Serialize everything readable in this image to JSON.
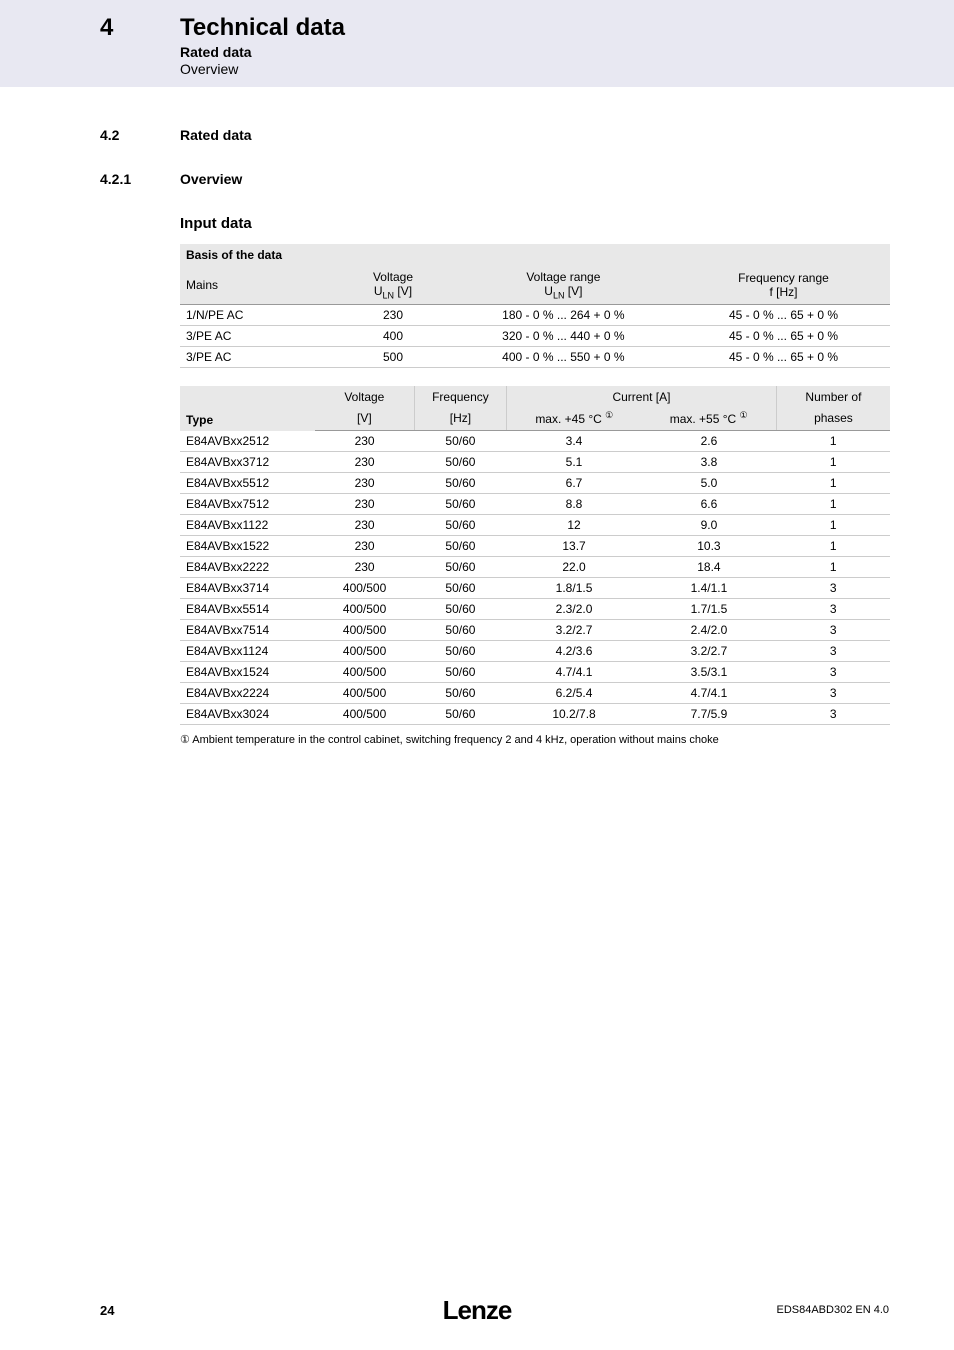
{
  "header": {
    "chapter": "4",
    "title": "Technical data",
    "subtitle": "Rated data",
    "subsubtitle": "Overview"
  },
  "sections": {
    "s42_num": "4.2",
    "s42_title": "Rated data",
    "s421_num": "4.2.1",
    "s421_title": "Overview",
    "h3": "Input data"
  },
  "table1": {
    "caption": "Basis of the data",
    "headers": {
      "mains": "Mains",
      "voltage": "Voltage",
      "voltage_unit": "U",
      "voltage_sub": "LN",
      "voltage_bracket": " [V]",
      "vrange": "Voltage range",
      "frange": "Frequency range",
      "frange_unit": "f [Hz]"
    },
    "rows": [
      {
        "mains": "1/N/PE AC",
        "v": "230",
        "vr": "180 - 0 % ... 264 + 0 %",
        "fr": "45 - 0 % ... 65 + 0 %"
      },
      {
        "mains": "3/PE AC",
        "v": "400",
        "vr": "320 - 0 % ... 440 + 0 %",
        "fr": "45 - 0 % ... 65 + 0 %"
      },
      {
        "mains": "3/PE AC",
        "v": "500",
        "vr": "400 - 0 % ... 550 + 0 %",
        "fr": "45 - 0 % ... 65 + 0 %"
      }
    ]
  },
  "table2": {
    "headers": {
      "type": "Type",
      "voltage": "Voltage",
      "v_unit": "[V]",
      "freq": "Frequency",
      "f_unit": "[Hz]",
      "current": "Current [A]",
      "c45": "max. +45 °C ",
      "c55": "max. +55 °C ",
      "phases": "Number of",
      "phases2": "phases",
      "circled1": "①"
    },
    "rows": [
      {
        "t": "E84AVBxx2512",
        "v": "230",
        "f": "50/60",
        "c45": "3.4",
        "c55": "2.6",
        "p": "1"
      },
      {
        "t": "E84AVBxx3712",
        "v": "230",
        "f": "50/60",
        "c45": "5.1",
        "c55": "3.8",
        "p": "1"
      },
      {
        "t": "E84AVBxx5512",
        "v": "230",
        "f": "50/60",
        "c45": "6.7",
        "c55": "5.0",
        "p": "1"
      },
      {
        "t": "E84AVBxx7512",
        "v": "230",
        "f": "50/60",
        "c45": "8.8",
        "c55": "6.6",
        "p": "1"
      },
      {
        "t": "E84AVBxx1122",
        "v": "230",
        "f": "50/60",
        "c45": "12",
        "c55": "9.0",
        "p": "1"
      },
      {
        "t": "E84AVBxx1522",
        "v": "230",
        "f": "50/60",
        "c45": "13.7",
        "c55": "10.3",
        "p": "1"
      },
      {
        "t": "E84AVBxx2222",
        "v": "230",
        "f": "50/60",
        "c45": "22.0",
        "c55": "18.4",
        "p": "1"
      },
      {
        "t": "E84AVBxx3714",
        "v": "400/500",
        "f": "50/60",
        "c45": "1.8/1.5",
        "c55": "1.4/1.1",
        "p": "3"
      },
      {
        "t": "E84AVBxx5514",
        "v": "400/500",
        "f": "50/60",
        "c45": "2.3/2.0",
        "c55": "1.7/1.5",
        "p": "3"
      },
      {
        "t": "E84AVBxx7514",
        "v": "400/500",
        "f": "50/60",
        "c45": "3.2/2.7",
        "c55": "2.4/2.0",
        "p": "3"
      },
      {
        "t": "E84AVBxx1124",
        "v": "400/500",
        "f": "50/60",
        "c45": "4.2/3.6",
        "c55": "3.2/2.7",
        "p": "3"
      },
      {
        "t": "E84AVBxx1524",
        "v": "400/500",
        "f": "50/60",
        "c45": "4.7/4.1",
        "c55": "3.5/3.1",
        "p": "3"
      },
      {
        "t": "E84AVBxx2224",
        "v": "400/500",
        "f": "50/60",
        "c45": "6.2/5.4",
        "c55": "4.7/4.1",
        "p": "3"
      },
      {
        "t": "E84AVBxx3024",
        "v": "400/500",
        "f": "50/60",
        "c45": "10.2/7.8",
        "c55": "7.7/5.9",
        "p": "3"
      }
    ]
  },
  "footnote": "① Ambient temperature in the control cabinet, switching frequency 2 and 4 kHz, operation without mains choke",
  "footer": {
    "page": "24",
    "logo": "Lenze",
    "docid": "EDS84ABD302 EN 4.0"
  }
}
